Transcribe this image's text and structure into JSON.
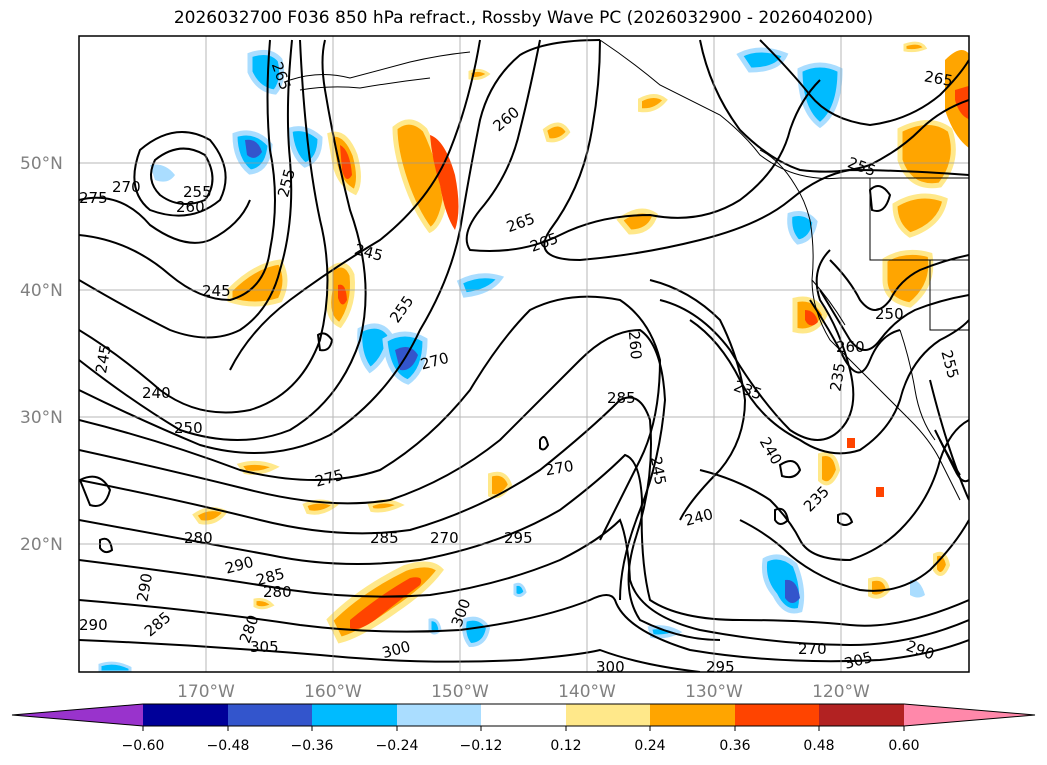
{
  "title": "2026032700 F036 850 hPa refract., Rossby Wave PC (2026032900 - 2026040200)",
  "lat_labels": [
    "50°N",
    "40°N",
    "30°N",
    "20°N"
  ],
  "lon_labels": [
    "170°W",
    "160°W",
    "150°W",
    "140°W",
    "130°W",
    "120°W"
  ],
  "contour_labels": [
    {
      "text": "265"
    },
    {
      "text": "275"
    },
    {
      "text": "270"
    },
    {
      "text": "255"
    },
    {
      "text": "260"
    },
    {
      "text": "245"
    },
    {
      "text": "255"
    },
    {
      "text": "260"
    },
    {
      "text": "265"
    },
    {
      "text": "265"
    },
    {
      "text": "245"
    },
    {
      "text": "255"
    },
    {
      "text": "245"
    },
    {
      "text": "240"
    },
    {
      "text": "250"
    },
    {
      "text": "270"
    },
    {
      "text": "260"
    },
    {
      "text": "285"
    },
    {
      "text": "275"
    },
    {
      "text": "270"
    },
    {
      "text": "245"
    },
    {
      "text": "240"
    },
    {
      "text": "235"
    },
    {
      "text": "240"
    },
    {
      "text": "235"
    },
    {
      "text": "280"
    },
    {
      "text": "285"
    },
    {
      "text": "270"
    },
    {
      "text": "295"
    },
    {
      "text": "290"
    },
    {
      "text": "285"
    },
    {
      "text": "280"
    },
    {
      "text": "290"
    },
    {
      "text": "285"
    },
    {
      "text": "280"
    },
    {
      "text": "305"
    },
    {
      "text": "300"
    },
    {
      "text": "300"
    },
    {
      "text": "300"
    },
    {
      "text": "295"
    },
    {
      "text": "270"
    },
    {
      "text": "305"
    },
    {
      "text": "290"
    },
    {
      "text": "265"
    },
    {
      "text": "255"
    },
    {
      "text": "250"
    },
    {
      "text": "260"
    },
    {
      "text": "235"
    },
    {
      "text": "255"
    },
    {
      "text": "290"
    }
  ],
  "colorbar": {
    "ticks": [
      "−0.60",
      "−0.48",
      "−0.36",
      "−0.24",
      "−0.12",
      "0.12",
      "0.24",
      "0.36",
      "0.48",
      "0.60"
    ],
    "colors": [
      "#9933cc",
      "#000099",
      "#3355cc",
      "#00bbff",
      "#aaddff",
      "#ffffff",
      "#ffe88a",
      "#ffa500",
      "#ff4400",
      "#b22222",
      "#ff88aa"
    ]
  }
}
